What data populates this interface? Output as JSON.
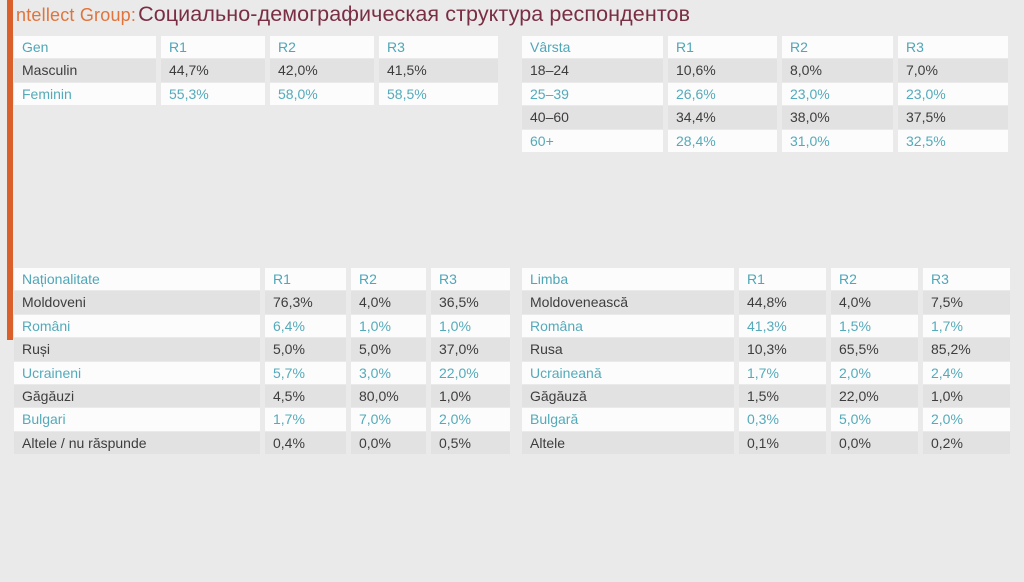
{
  "header": {
    "logo": "ntellect Group:",
    "title": "Социально-демографическая структура респондентов"
  },
  "colors": {
    "page_background": "#eaeaea",
    "accent_bar": "#d9602b",
    "logo_orange": "#e0743c",
    "title_maroon": "#7a2e44",
    "teal_text": "#4fa6b8",
    "dark_text": "#3d3d3d",
    "row_gray": "#e2e2e2",
    "row_white": "#fcfcfc"
  },
  "tables": [
    {
      "name": "gen",
      "header": [
        "Gen",
        "R1",
        "R2",
        "R3"
      ],
      "rows": [
        [
          "Masculin",
          "44,7%",
          "42,0%",
          "41,5%"
        ],
        [
          "Feminin",
          "55,3%",
          "58,0%",
          "58,5%"
        ]
      ]
    },
    {
      "name": "varsta",
      "header": [
        "Vârsta",
        "R1",
        "R2",
        "R3"
      ],
      "rows": [
        [
          "18–24",
          "10,6%",
          "8,0%",
          "7,0%"
        ],
        [
          "25–39",
          "26,6%",
          "23,0%",
          "23,0%"
        ],
        [
          "40–60",
          "34,4%",
          "38,0%",
          "37,5%"
        ],
        [
          "60+",
          "28,4%",
          "31,0%",
          "32,5%"
        ]
      ]
    },
    {
      "name": "nationalitate",
      "header": [
        "Naționalitate",
        "R1",
        "R2",
        "R3"
      ],
      "rows": [
        [
          "Moldoveni",
          "76,3%",
          "4,0%",
          "36,5%"
        ],
        [
          "Români",
          "6,4%",
          "1,0%",
          "1,0%"
        ],
        [
          "Ruși",
          "5,0%",
          "5,0%",
          "37,0%"
        ],
        [
          "Ucraineni",
          "5,7%",
          "3,0%",
          "22,0%"
        ],
        [
          "Găgăuzi",
          "4,5%",
          "80,0%",
          "1,0%"
        ],
        [
          "Bulgari",
          "1,7%",
          "7,0%",
          "2,0%"
        ],
        [
          "Altele / nu răspunde",
          "0,4%",
          "0,0%",
          "0,5%"
        ]
      ]
    },
    {
      "name": "limba",
      "header": [
        "Limba",
        "R1",
        "R2",
        "R3"
      ],
      "rows": [
        [
          "Moldovenească",
          "44,8%",
          "4,0%",
          "7,5%"
        ],
        [
          "Româna",
          "41,3%",
          "1,5%",
          "1,7%"
        ],
        [
          "Rusa",
          "10,3%",
          "65,5%",
          "85,2%"
        ],
        [
          "Ucraineană",
          "1,7%",
          "2,0%",
          "2,4%"
        ],
        [
          "Găgăuză",
          "1,5%",
          "22,0%",
          "1,0%"
        ],
        [
          "Bulgară",
          "0,3%",
          "5,0%",
          "2,0%"
        ],
        [
          "Altele",
          "0,1%",
          "0,0%",
          "0,2%"
        ]
      ]
    }
  ]
}
